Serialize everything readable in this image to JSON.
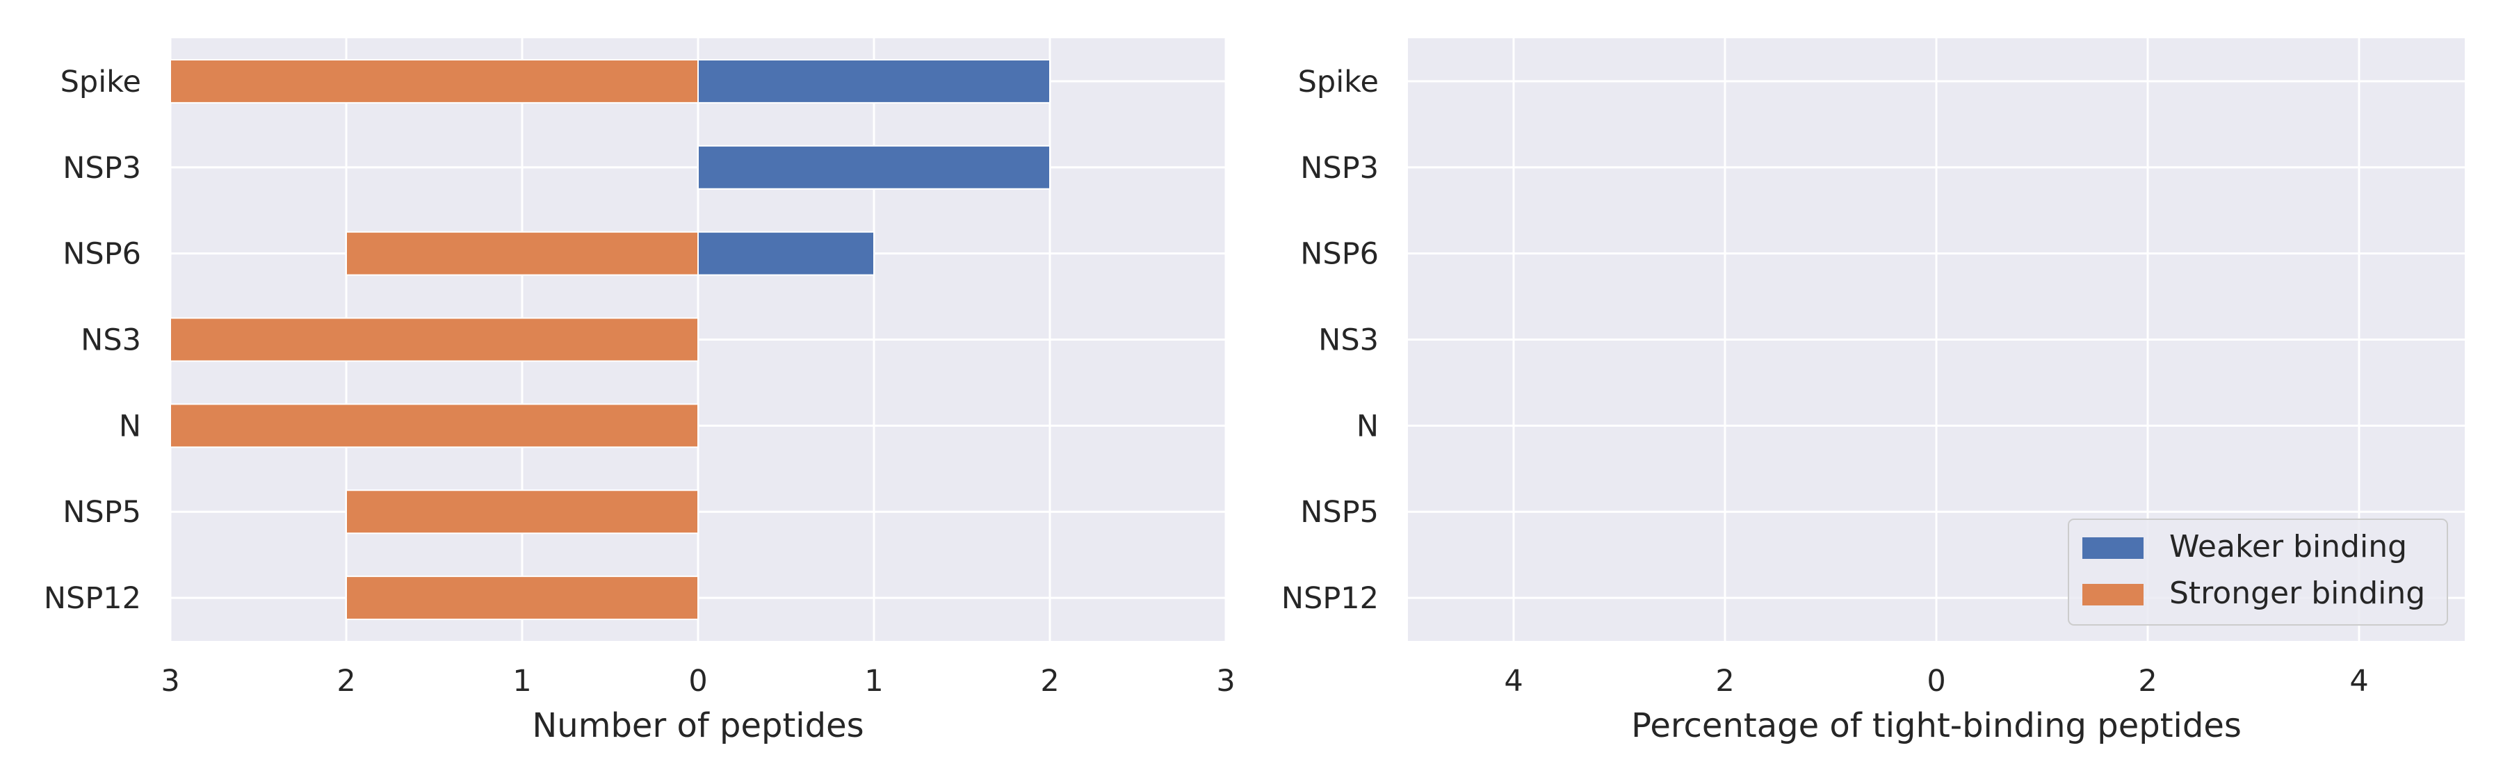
{
  "chart_data": [
    {
      "type": "bar",
      "orientation": "horizontal",
      "categories": [
        "Spike",
        "NSP3",
        "NSP6",
        "NS3",
        "N",
        "NSP5",
        "NSP12"
      ],
      "series": [
        {
          "name": "Weaker binding",
          "color": "#4c72b0",
          "values": [
            2,
            2,
            1,
            0,
            0,
            0,
            0
          ]
        },
        {
          "name": "Stronger binding",
          "color": "#dd8452",
          "values": [
            3,
            0,
            2,
            3,
            3,
            2,
            2
          ]
        }
      ],
      "xlabel": "Number of peptides",
      "xlim": [
        -3,
        3
      ],
      "xticks": [
        -3,
        -2,
        -1,
        0,
        1,
        2,
        3
      ],
      "xtick_labels": [
        "3",
        "2",
        "1",
        "0",
        "1",
        "2",
        "3"
      ],
      "grid": true
    },
    {
      "type": "bar",
      "orientation": "horizontal",
      "categories": [
        "Spike",
        "NSP3",
        "NSP6",
        "NS3",
        "N",
        "NSP5",
        "NSP12"
      ],
      "series": [
        {
          "name": "Weaker binding",
          "color": "#4c72b0",
          "values": [
            0,
            0,
            0,
            0,
            0,
            0,
            0
          ]
        },
        {
          "name": "Stronger binding",
          "color": "#dd8452",
          "values": [
            0,
            0,
            0,
            0,
            0,
            0,
            0
          ]
        }
      ],
      "xlabel": "Percentage of tight-binding peptides",
      "xlim": [
        -5,
        5
      ],
      "xticks": [
        -4,
        -2,
        0,
        2,
        4
      ],
      "xtick_labels": [
        "4",
        "2",
        "0",
        "2",
        "4"
      ],
      "grid": true,
      "legend": {
        "placement": "lower-right",
        "entries": [
          "Weaker binding",
          "Stronger binding"
        ]
      }
    }
  ],
  "colors": {
    "axes_background": "#eaeaf2",
    "grid": "#ffffff",
    "text": "#262626"
  }
}
